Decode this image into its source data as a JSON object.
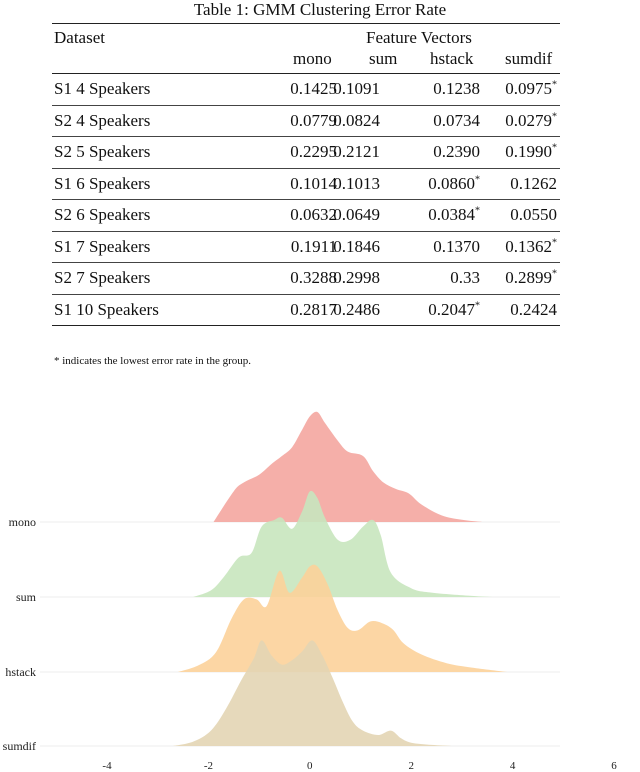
{
  "table": {
    "caption": "Table 1: GMM Clustering Error Rate",
    "dataset_header": "Dataset",
    "group_header": "Feature Vectors",
    "columns": [
      "mono",
      "sum",
      "hstack",
      "sumdif"
    ],
    "rows": [
      {
        "dataset": "S1 4 Speakers",
        "values": [
          "0.1425",
          "0.1091",
          "0.1238",
          "0.0975"
        ],
        "best": 3
      },
      {
        "dataset": "S2 4 Speakers",
        "values": [
          "0.0779",
          "0.0824",
          "0.0734",
          "0.0279"
        ],
        "best": 3
      },
      {
        "dataset": "S2 5 Speakers",
        "values": [
          "0.2295",
          "0.2121",
          "0.2390",
          "0.1990"
        ],
        "best": 3
      },
      {
        "dataset": "S1 6 Speakers",
        "values": [
          "0.1014",
          "0.1013",
          "0.0860",
          "0.1262"
        ],
        "best": 2
      },
      {
        "dataset": "S2 6 Speakers",
        "values": [
          "0.0632",
          "0.0649",
          "0.0384",
          "0.0550"
        ],
        "best": 2
      },
      {
        "dataset": "S1 7 Speakers",
        "values": [
          "0.1911",
          "0.1846",
          "0.1370",
          "0.1362"
        ],
        "best": 3
      },
      {
        "dataset": "S2 7 Speakers",
        "values": [
          "0.3288",
          "0.2998",
          "0.33",
          "0.2899"
        ],
        "best": 3
      },
      {
        "dataset": "S1 10 Speakers",
        "values": [
          "0.2817",
          "0.2486",
          "0.2047",
          "0.2424"
        ],
        "best": 2
      }
    ],
    "star": "*",
    "footnote": "* indicates the lowest error rate in the group."
  },
  "chart_data": {
    "type": "area",
    "title": "",
    "xlabel": "",
    "ylabel": "",
    "xlim": [
      -4,
      6
    ],
    "xticks": [
      "-4",
      "-2",
      "0",
      "2",
      "4",
      "6"
    ],
    "grid": false,
    "series": [
      {
        "name": "mono",
        "color": "#f4a6a0",
        "x": [
          -1.9,
          -1.5,
          -1.3,
          -1.0,
          -0.75,
          -0.55,
          -0.35,
          -0.15,
          0.0,
          0.15,
          0.3,
          0.55,
          0.75,
          1.05,
          1.25,
          1.45,
          1.7,
          1.95,
          2.2,
          2.6,
          3.0,
          3.4
        ],
        "y": [
          0.0,
          0.28,
          0.36,
          0.43,
          0.53,
          0.6,
          0.68,
          0.84,
          0.96,
          1.0,
          0.9,
          0.74,
          0.64,
          0.6,
          0.46,
          0.36,
          0.3,
          0.26,
          0.16,
          0.06,
          0.02,
          0.0
        ]
      },
      {
        "name": "sum",
        "color": "#c8e6be",
        "x": [
          -2.3,
          -1.95,
          -1.7,
          -1.4,
          -1.15,
          -0.95,
          -0.7,
          -0.55,
          -0.35,
          -0.15,
          0.0,
          0.15,
          0.3,
          0.55,
          0.8,
          1.05,
          1.25,
          1.4,
          1.6,
          2.0,
          2.4,
          3.2,
          3.6
        ],
        "y": [
          0.0,
          0.06,
          0.18,
          0.36,
          0.4,
          0.64,
          0.7,
          0.72,
          0.62,
          0.78,
          0.96,
          0.9,
          0.72,
          0.52,
          0.52,
          0.64,
          0.7,
          0.56,
          0.22,
          0.08,
          0.04,
          0.01,
          0.0
        ]
      },
      {
        "name": "hstack",
        "color": "#fcd29a",
        "x": [
          -2.6,
          -2.2,
          -1.85,
          -1.55,
          -1.3,
          -1.05,
          -0.85,
          -0.6,
          -0.4,
          -0.15,
          0.0,
          0.15,
          0.35,
          0.55,
          0.75,
          0.95,
          1.2,
          1.45,
          1.65,
          1.85,
          2.2,
          2.7,
          3.2,
          3.9
        ],
        "y": [
          0.0,
          0.06,
          0.18,
          0.48,
          0.66,
          0.66,
          0.6,
          0.92,
          0.72,
          0.86,
          0.96,
          0.96,
          0.8,
          0.56,
          0.4,
          0.38,
          0.46,
          0.44,
          0.38,
          0.26,
          0.16,
          0.08,
          0.04,
          0.0
        ]
      },
      {
        "name": "sumdif",
        "color": "#e3d5b4",
        "x": [
          -2.7,
          -2.3,
          -1.95,
          -1.65,
          -1.35,
          -1.1,
          -0.95,
          -0.75,
          -0.55,
          -0.35,
          -0.15,
          0.05,
          0.25,
          0.45,
          0.65,
          0.85,
          1.05,
          1.35,
          1.6,
          1.8,
          2.0,
          2.4,
          2.8
        ],
        "y": [
          0.0,
          0.04,
          0.14,
          0.34,
          0.6,
          0.8,
          0.96,
          0.82,
          0.74,
          0.78,
          0.86,
          0.96,
          0.82,
          0.62,
          0.4,
          0.22,
          0.14,
          0.1,
          0.14,
          0.07,
          0.03,
          0.01,
          0.0
        ]
      }
    ]
  }
}
